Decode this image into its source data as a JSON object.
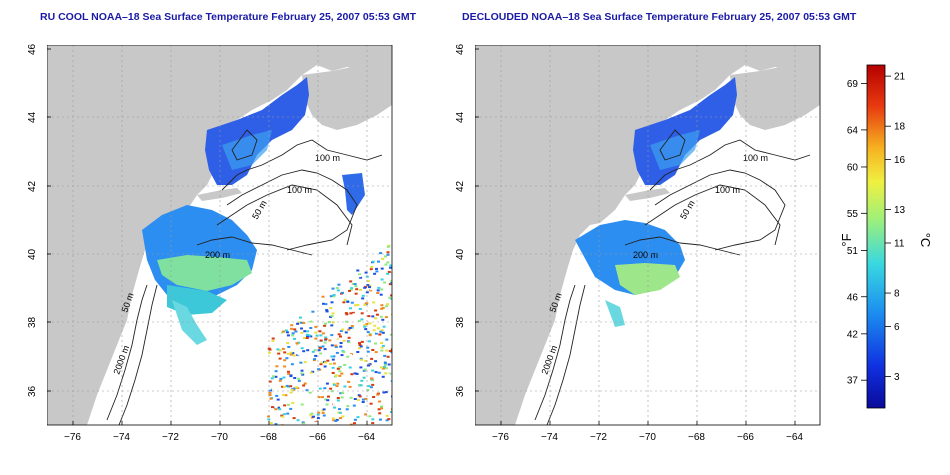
{
  "panels": [
    {
      "title": "RU COOL NOAA–18 Sea Surface Temperature February 25, 2007 05:53 GMT",
      "variant": "raw"
    },
    {
      "title": "DECLOUDED NOAA–18 Sea Surface Temperature February 25, 2007 05:53 GMT",
      "variant": "declouded"
    }
  ],
  "axes": {
    "lat_ticks": [
      "36",
      "38",
      "40",
      "42",
      "44",
      "46"
    ],
    "lon_ticks": [
      "−76",
      "−74",
      "−72",
      "−70",
      "−68",
      "−66",
      "−64"
    ]
  },
  "contour_labels": [
    "100 m",
    "100 m",
    "50 m",
    "200 m",
    "50 m",
    "2000 m"
  ],
  "colorbar": {
    "fahrenheit_ticks": [
      "69",
      "64",
      "60",
      "55",
      "51",
      "46",
      "42",
      "37"
    ],
    "celsius_ticks": [
      "21",
      "18",
      "16",
      "13",
      "11",
      "8",
      "6",
      "3"
    ],
    "fahrenheit_unit": "°F",
    "celsius_unit": "°C"
  },
  "colors": {
    "land": "#c8c8c8",
    "ocean": "#ffffff",
    "title": "#1a1aa6",
    "scale_cold": "#0a0a9a",
    "scale_warm": "#b50000"
  }
}
